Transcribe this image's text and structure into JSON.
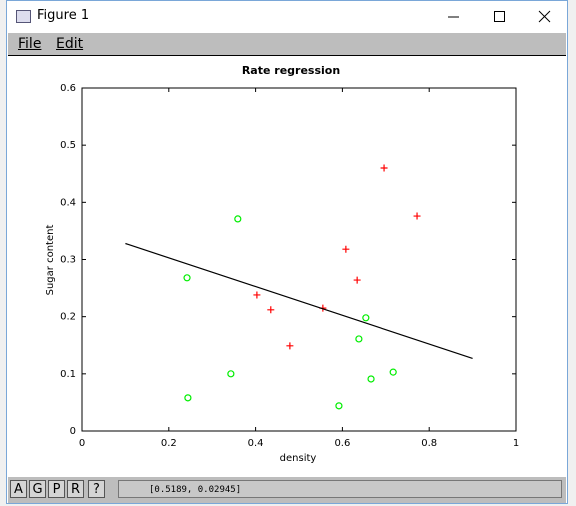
{
  "window": {
    "title": "Figure 1",
    "menu": [
      "File",
      "Edit"
    ],
    "buttons": [
      "A",
      "G",
      "P",
      "R",
      "?"
    ],
    "status": "[0.5189, 0.02945]"
  },
  "chart_data": {
    "type": "scatter",
    "title": "Rate regression",
    "x_label": "density",
    "y_label": "Sugar content",
    "xlim": [
      0,
      1
    ],
    "ylim": [
      0,
      0.6
    ],
    "xticks": [
      0,
      0.2,
      0.4,
      0.6,
      0.8,
      1
    ],
    "yticks": [
      0,
      0.1,
      0.2,
      0.3,
      0.4,
      0.5,
      0.6
    ],
    "series": [
      {
        "marker": "plus",
        "color": "#ff0000",
        "x": [
          0.696,
          0.772,
          0.608,
          0.634,
          0.403,
          0.435,
          0.555,
          0.479
        ],
        "values": [
          0.46,
          0.376,
          0.318,
          0.264,
          0.238,
          0.212,
          0.215,
          0.149
        ]
      },
      {
        "marker": "circle",
        "color": "#00ee00",
        "x": [
          0.359,
          0.242,
          0.654,
          0.638,
          0.343,
          0.717,
          0.666,
          0.244,
          0.592
        ],
        "values": [
          0.371,
          0.268,
          0.198,
          0.161,
          0.1,
          0.103,
          0.091,
          0.058,
          0.044
        ]
      },
      {
        "marker": "line",
        "color": "#000000",
        "x": [
          0.1,
          0.9
        ],
        "values": [
          0.328,
          0.127
        ]
      }
    ]
  }
}
